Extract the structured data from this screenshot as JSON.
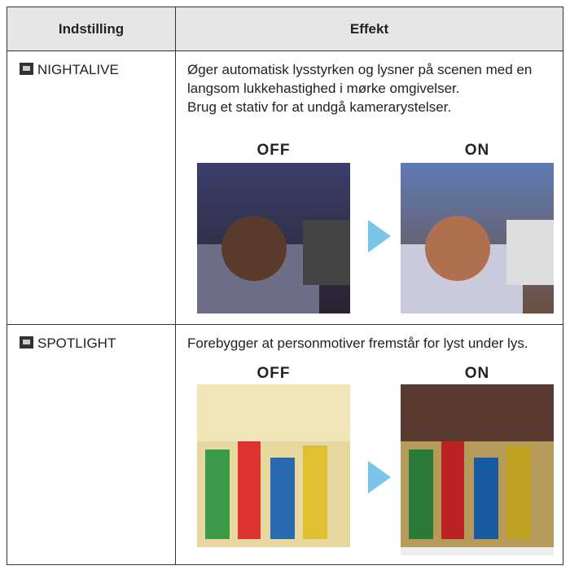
{
  "table": {
    "header": [
      "Indstilling",
      "Effekt"
    ],
    "rows": [
      {
        "setting": "NIGHTALIVE",
        "effect": [
          "Øger automatisk lysstyrken og lysner på scenen med en langsom lukkehastighed i mørke omgivelser.",
          "Brug et stativ for at undgå kamerarystelser."
        ],
        "off_label": "OFF",
        "on_label": "ON"
      },
      {
        "setting": "SPOTLIGHT",
        "effect": [
          "Forebygger at personmotiver fremstår for lyst under lys."
        ],
        "off_label": "OFF",
        "on_label": "ON"
      }
    ]
  }
}
